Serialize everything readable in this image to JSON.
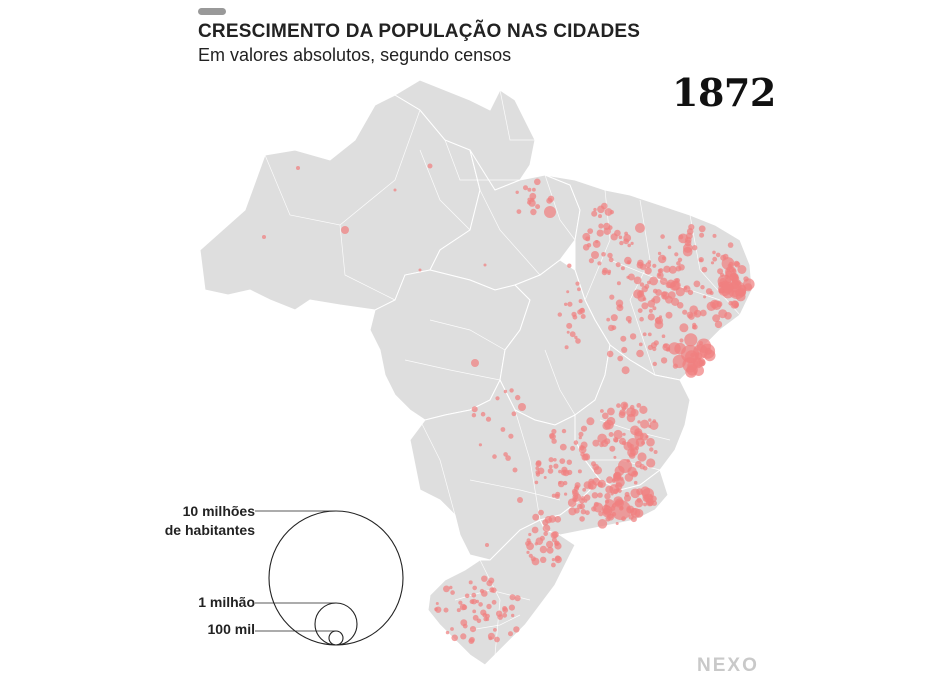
{
  "header": {
    "title": "CRESCIMENTO DA POPULAÇÃO NAS CIDADES",
    "subtitle": "Em valores absolutos, segundo censos"
  },
  "map": {
    "year": "1872",
    "region": "Brasil",
    "land_color": "#dedede",
    "border_color": "#ffffff",
    "bubble_color": "#f08080"
  },
  "legend": {
    "items": [
      {
        "label": "10 milhões de habitantes",
        "label_line1": "10 milhões",
        "label_line2": "de habitantes",
        "population": 10000000
      },
      {
        "label": "1 milhão",
        "population": 1000000
      },
      {
        "label": "100 mil",
        "population": 100000
      }
    ]
  },
  "brand": {
    "logo_text": "NEXO"
  }
}
